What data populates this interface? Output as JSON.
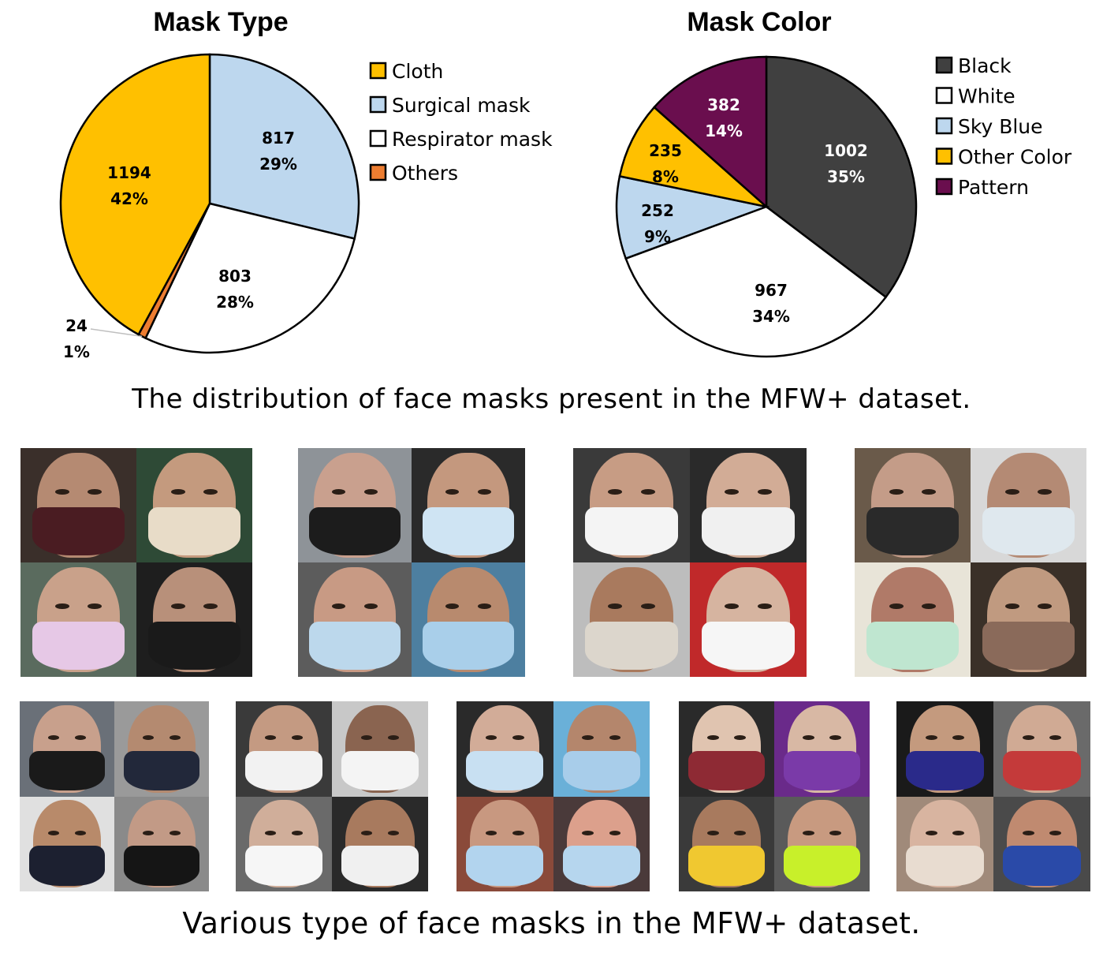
{
  "chart_data": [
    {
      "type": "pie",
      "title": "Mask Type",
      "slices": [
        {
          "label": "Surgical mask",
          "value": 817,
          "percent": "29%",
          "color": "#BDD7EE"
        },
        {
          "label": "Respirator mask",
          "value": 803,
          "percent": "28%",
          "color": "#FFFFFF"
        },
        {
          "label": "Others",
          "value": 24,
          "percent": "1%",
          "color": "#ED7D31"
        },
        {
          "label": "Cloth",
          "value": 1194,
          "percent": "42%",
          "color": "#FFC000"
        }
      ],
      "legend": [
        "Cloth",
        "Surgical mask",
        "Respirator mask",
        "Others"
      ],
      "legend_placement": "right"
    },
    {
      "type": "pie",
      "title": "Mask Color",
      "slices": [
        {
          "label": "Black",
          "value": 1002,
          "percent": "35%",
          "color": "#404040"
        },
        {
          "label": "White",
          "value": 967,
          "percent": "34%",
          "color": "#FFFFFF"
        },
        {
          "label": "Sky Blue",
          "value": 252,
          "percent": "9%",
          "color": "#BDD7EE"
        },
        {
          "label": "Other Color",
          "value": 235,
          "percent": "8%",
          "color": "#FFC000"
        },
        {
          "label": "Pattern",
          "value": 382,
          "percent": "14%",
          "color": "#6A0E4E"
        }
      ],
      "legend": [
        "Black",
        "White",
        "Sky Blue",
        "Other Color",
        "Pattern"
      ],
      "legend_placement": "right"
    }
  ],
  "captions": {
    "distribution": "The distribution of face masks present in the MFW+ dataset.",
    "types": "Various type of face masks in the MFW+ dataset."
  },
  "mosaics": [
    {
      "group": "cloth",
      "faces": [
        {
          "skin": "#b58a72",
          "mask": "#4a1c22",
          "bg": "#3a2f2a"
        },
        {
          "skin": "#c49a7e",
          "mask": "#e8dcc8",
          "bg": "#2e4a36"
        },
        {
          "skin": "#c9a18a",
          "mask": "#e6c8e6",
          "bg": "#5a6b5e"
        },
        {
          "skin": "#b8907a",
          "mask": "#1a1a1a",
          "bg": "#1e1e1e"
        }
      ]
    },
    {
      "group": "surgical",
      "faces": [
        {
          "skin": "#c9a08e",
          "mask": "#1c1c1c",
          "bg": "#8e9398"
        },
        {
          "skin": "#c4987e",
          "mask": "#cfe4f3",
          "bg": "#2a2a2a"
        },
        {
          "skin": "#c89a84",
          "mask": "#bcd8ec",
          "bg": "#5c5c5c"
        },
        {
          "skin": "#b88a6e",
          "mask": "#a9cfea",
          "bg": "#4d7fa0"
        }
      ]
    },
    {
      "group": "respirator",
      "faces": [
        {
          "skin": "#c79c84",
          "mask": "#f4f4f4",
          "bg": "#3a3a3a"
        },
        {
          "skin": "#d2ac96",
          "mask": "#f0f0f0",
          "bg": "#2a2a2a"
        },
        {
          "skin": "#a97a5e",
          "mask": "#dcd6cc",
          "bg": "#bdbdbd"
        },
        {
          "skin": "#d6b4a0",
          "mask": "#f6f6f6",
          "bg": "#c0292a"
        }
      ]
    },
    {
      "group": "others",
      "faces": [
        {
          "skin": "#c49c88",
          "mask": "#2a2a2a",
          "bg": "#6a5a4a"
        },
        {
          "skin": "#b48a74",
          "mask": "#dfe8ee",
          "bg": "#d8d8d8"
        },
        {
          "skin": "#b07a68",
          "mask": "#bfe6d0",
          "bg": "#e8e4d8"
        },
        {
          "skin": "#c09a80",
          "mask": "#8a6a5a",
          "bg": "#3a3028"
        }
      ]
    },
    {
      "group": "black",
      "faces": [
        {
          "skin": "#c8a08c",
          "mask": "#1a1a1a",
          "bg": "#6a7078"
        },
        {
          "skin": "#b48a70",
          "mask": "#22283a",
          "bg": "#9a9a9a"
        },
        {
          "skin": "#b88a6a",
          "mask": "#1c2030",
          "bg": "#e0e0e0"
        },
        {
          "skin": "#c29a86",
          "mask": "#151515",
          "bg": "#8a8a8a"
        }
      ]
    },
    {
      "group": "white",
      "faces": [
        {
          "skin": "#c49a82",
          "mask": "#f2f2f2",
          "bg": "#3a3a3a"
        },
        {
          "skin": "#8a6450",
          "mask": "#f4f4f4",
          "bg": "#c8c8c8"
        },
        {
          "skin": "#d0ae9a",
          "mask": "#f6f6f6",
          "bg": "#6a6a6a"
        },
        {
          "skin": "#a87a5e",
          "mask": "#f0f0f0",
          "bg": "#2a2a2a"
        }
      ]
    },
    {
      "group": "sky-blue",
      "faces": [
        {
          "skin": "#d2ac98",
          "mask": "#c8e0f2",
          "bg": "#2a2a2a"
        },
        {
          "skin": "#b4866c",
          "mask": "#a8cdea",
          "bg": "#6ab0d8"
        },
        {
          "skin": "#c89880",
          "mask": "#b2d4ee",
          "bg": "#8a4a3a"
        },
        {
          "skin": "#dca08c",
          "mask": "#b6d6ee",
          "bg": "#4a3a3a"
        }
      ]
    },
    {
      "group": "other-color",
      "faces": [
        {
          "skin": "#e0c4b0",
          "mask": "#8e2a34",
          "bg": "#2a2a2a"
        },
        {
          "skin": "#d8b8a4",
          "mask": "#7a3aa8",
          "bg": "#6a2a8a"
        },
        {
          "skin": "#a87a5e",
          "mask": "#f0c830",
          "bg": "#3a3a3a"
        },
        {
          "skin": "#c89a80",
          "mask": "#c8f02a",
          "bg": "#5a5a5a"
        }
      ]
    },
    {
      "group": "pattern",
      "faces": [
        {
          "skin": "#c49a7e",
          "mask": "#2a2a8a",
          "bg": "#1a1a1a"
        },
        {
          "skin": "#d0aa94",
          "mask": "#c43a3a",
          "bg": "#6a6a6a"
        },
        {
          "skin": "#d8b4a0",
          "mask": "#e8dcd0",
          "bg": "#a08a7a"
        },
        {
          "skin": "#c08a70",
          "mask": "#2a4aa8",
          "bg": "#4a4a4a"
        }
      ]
    }
  ]
}
